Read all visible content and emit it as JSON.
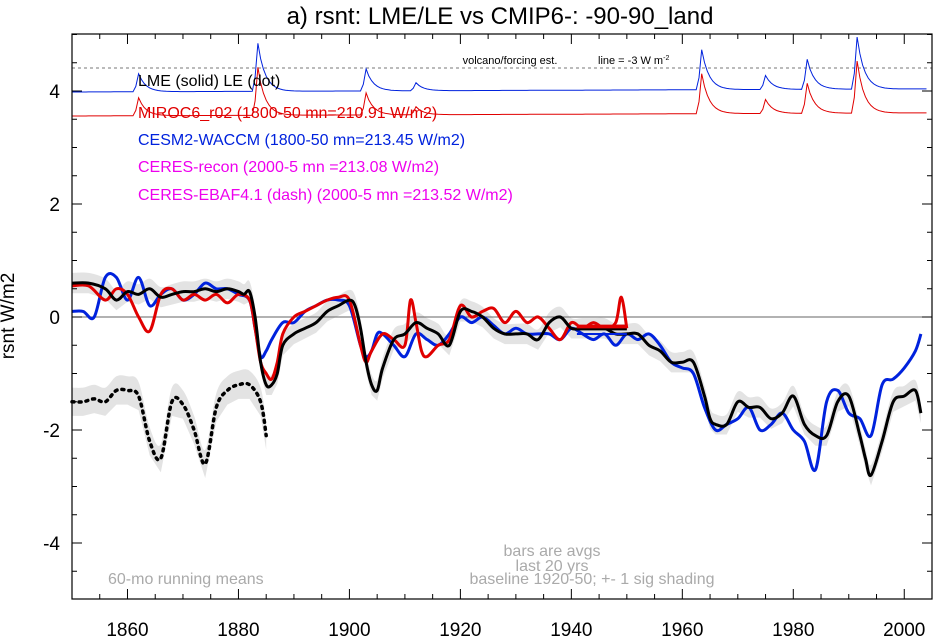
{
  "chart_data": {
    "type": "line",
    "title": "a) rsnt: LME/LE vs CMIP6-: -90-90_land",
    "ylabel": "rsnt W/m2",
    "xlim": [
      1850,
      2005
    ],
    "ylim": [
      -5,
      5.5
    ],
    "xticks": [
      1860,
      1880,
      1900,
      1920,
      1940,
      1960,
      1980,
      2000
    ],
    "yticks": [
      -4,
      -2,
      0,
      2,
      4
    ],
    "legend": [
      {
        "text": "LME (solid)   LE (dot)",
        "color": "#000000"
      },
      {
        "text": "MIROC6_r02 (1800-50 mn=210.91 W/m2)",
        "color": "#e00000"
      },
      {
        "text": "CESM2-WACCM (1800-50 mn=213.45 W/m2)",
        "color": "#0022dd"
      },
      {
        "text": "CERES-recon (2000-5 mn =213.08 W/m2)",
        "color": "#ee00ee"
      },
      {
        "text": "CERES-EBAF4.1 (dash) (2000-5 mn =213.52 W/m2)",
        "color": "#ee00ee"
      }
    ],
    "annotations": {
      "volcano": "volcano/forcing est.",
      "line_note": "line = -3 W m",
      "line_sup": "-2",
      "bars1": "bars are avgs",
      "bars2": "last 20 yrs",
      "running": "60-mo running means",
      "baseline": "baseline 1920-50; +- 1 sig shading"
    },
    "series": [
      {
        "name": "LME",
        "color": "#000000",
        "style": "solid",
        "x": [
          1850,
          1853,
          1856,
          1858,
          1860,
          1862,
          1864,
          1866,
          1868,
          1870,
          1872,
          1874,
          1876,
          1878,
          1880,
          1881,
          1882,
          1883,
          1884,
          1885,
          1886,
          1887,
          1888,
          1890,
          1892,
          1894,
          1896,
          1898,
          1900,
          1901,
          1902,
          1903,
          1904,
          1905,
          1906,
          1908,
          1910,
          1912,
          1914,
          1916,
          1918,
          1920,
          1922,
          1924,
          1926,
          1928,
          1930,
          1932,
          1934,
          1936,
          1938,
          1940,
          1942,
          1944,
          1946,
          1948,
          1950,
          1952,
          1954,
          1956,
          1958,
          1960,
          1962,
          1964,
          1965,
          1966,
          1968,
          1970,
          1972,
          1974,
          1976,
          1978,
          1980,
          1982,
          1984,
          1986,
          1988,
          1990,
          1992,
          1993,
          1994,
          1996,
          1998,
          2000,
          2002,
          2003
        ],
        "y": [
          0.6,
          0.6,
          0.5,
          0.3,
          0.45,
          0.4,
          0.5,
          0.35,
          0.4,
          0.45,
          0.45,
          0.5,
          0.45,
          0.5,
          0.45,
          0.4,
          0.45,
          0.0,
          -0.8,
          -1.2,
          -1.2,
          -1.0,
          -0.5,
          -0.3,
          -0.2,
          -0.1,
          0.1,
          0.2,
          0.3,
          0.2,
          -0.2,
          -0.8,
          -1.2,
          -1.3,
          -0.9,
          -0.4,
          -0.3,
          -0.1,
          -0.2,
          -0.3,
          -0.5,
          0.1,
          0.1,
          0.0,
          -0.2,
          -0.3,
          -0.3,
          -0.3,
          -0.4,
          -0.1,
          0.0,
          -0.2,
          -0.2,
          -0.2,
          -0.2,
          -0.3,
          -0.3,
          -0.3,
          -0.5,
          -0.6,
          -0.8,
          -0.8,
          -0.8,
          -1.4,
          -1.8,
          -1.9,
          -1.9,
          -1.5,
          -1.6,
          -1.6,
          -1.8,
          -1.7,
          -1.4,
          -1.9,
          -2.1,
          -2.1,
          -1.5,
          -1.4,
          -2.1,
          -2.5,
          -2.8,
          -2.2,
          -1.5,
          -1.4,
          -1.3,
          -1.7
        ]
      },
      {
        "name": "LE",
        "color": "#000000",
        "style": "dot",
        "x": [
          1850,
          1852,
          1854,
          1856,
          1858,
          1860,
          1862,
          1864,
          1866,
          1868,
          1870,
          1872,
          1874,
          1876,
          1878,
          1880,
          1882,
          1884,
          1885
        ],
        "y": [
          -1.5,
          -1.5,
          -1.45,
          -1.5,
          -1.3,
          -1.3,
          -1.4,
          -2.2,
          -2.5,
          -1.5,
          -1.55,
          -2.0,
          -2.6,
          -1.6,
          -1.3,
          -1.2,
          -1.2,
          -1.5,
          -2.1
        ]
      },
      {
        "name": "MIROC6_r02",
        "color": "#e00000",
        "style": "solid",
        "x": [
          1850,
          1853,
          1856,
          1858,
          1860,
          1862,
          1864,
          1866,
          1868,
          1870,
          1872,
          1874,
          1876,
          1878,
          1880,
          1882,
          1883,
          1884,
          1885,
          1886,
          1887,
          1888,
          1890,
          1892,
          1894,
          1896,
          1898,
          1900,
          1902,
          1903,
          1904,
          1906,
          1908,
          1910,
          1911,
          1912,
          1913,
          1914,
          1916,
          1918,
          1920,
          1922,
          1924,
          1926,
          1928,
          1930,
          1932,
          1934,
          1936,
          1938,
          1940,
          1942,
          1944,
          1946,
          1948,
          1949,
          1950
        ],
        "y": [
          0.55,
          0.55,
          0.3,
          0.5,
          0.4,
          0.0,
          -0.25,
          0.4,
          0.5,
          0.3,
          0.4,
          0.3,
          0.4,
          0.25,
          0.4,
          0.3,
          -0.2,
          -0.8,
          -1.0,
          -1.1,
          -0.8,
          -0.3,
          0.0,
          0.1,
          0.2,
          0.3,
          0.35,
          0.3,
          -0.5,
          -0.8,
          -0.6,
          -0.3,
          -0.4,
          -0.5,
          0.3,
          -0.1,
          -0.6,
          -0.7,
          -0.5,
          -0.4,
          0.2,
          0.0,
          0.1,
          0.15,
          -0.1,
          0.1,
          -0.1,
          0.0,
          -0.2,
          -0.4,
          -0.1,
          -0.2,
          -0.1,
          -0.2,
          -0.1,
          0.35,
          -0.2
        ]
      },
      {
        "name": "CESM2-WACCM",
        "color": "#0022dd",
        "style": "solid",
        "x": [
          1850,
          1852,
          1854,
          1856,
          1858,
          1860,
          1862,
          1864,
          1866,
          1868,
          1870,
          1872,
          1874,
          1876,
          1878,
          1880,
          1882,
          1883,
          1884,
          1885,
          1886,
          1888,
          1890,
          1892,
          1894,
          1896,
          1898,
          1900,
          1902,
          1903,
          1904,
          1905,
          1906,
          1908,
          1910,
          1912,
          1914,
          1916,
          1918,
          1920,
          1922,
          1924,
          1926,
          1928,
          1930,
          1932,
          1934,
          1936,
          1938,
          1940,
          1942,
          1944,
          1946,
          1948,
          1950,
          1952,
          1954,
          1956,
          1958,
          1960,
          1962,
          1964,
          1966,
          1968,
          1970,
          1972,
          1974,
          1976,
          1978,
          1980,
          1982,
          1984,
          1986,
          1988,
          1990,
          1992,
          1994,
          1996,
          1998,
          2000,
          2002,
          2003
        ],
        "y": [
          0.1,
          0.1,
          0.0,
          0.7,
          0.7,
          0.3,
          0.7,
          0.2,
          0.4,
          0.5,
          0.3,
          0.4,
          0.6,
          0.5,
          0.5,
          0.4,
          0.3,
          -0.2,
          -0.7,
          -0.6,
          -0.4,
          -0.1,
          -0.1,
          0.1,
          0.2,
          0.3,
          0.3,
          0.2,
          -0.5,
          -0.7,
          -0.6,
          -0.3,
          -0.3,
          -0.5,
          -0.7,
          -0.3,
          -0.4,
          -0.5,
          -0.3,
          0.0,
          -0.1,
          0.0,
          -0.15,
          -0.3,
          -0.2,
          -0.3,
          -0.3,
          -0.3,
          -0.4,
          -0.2,
          -0.3,
          -0.4,
          -0.3,
          -0.5,
          -0.3,
          -0.4,
          -0.3,
          -0.5,
          -0.8,
          -0.9,
          -1.0,
          -1.6,
          -2.0,
          -1.9,
          -1.8,
          -1.6,
          -2.0,
          -1.9,
          -1.7,
          -2.0,
          -2.2,
          -2.7,
          -1.5,
          -1.3,
          -1.7,
          -1.8,
          -2.1,
          -1.2,
          -1.1,
          -0.9,
          -0.6,
          -0.3
        ]
      }
    ]
  }
}
